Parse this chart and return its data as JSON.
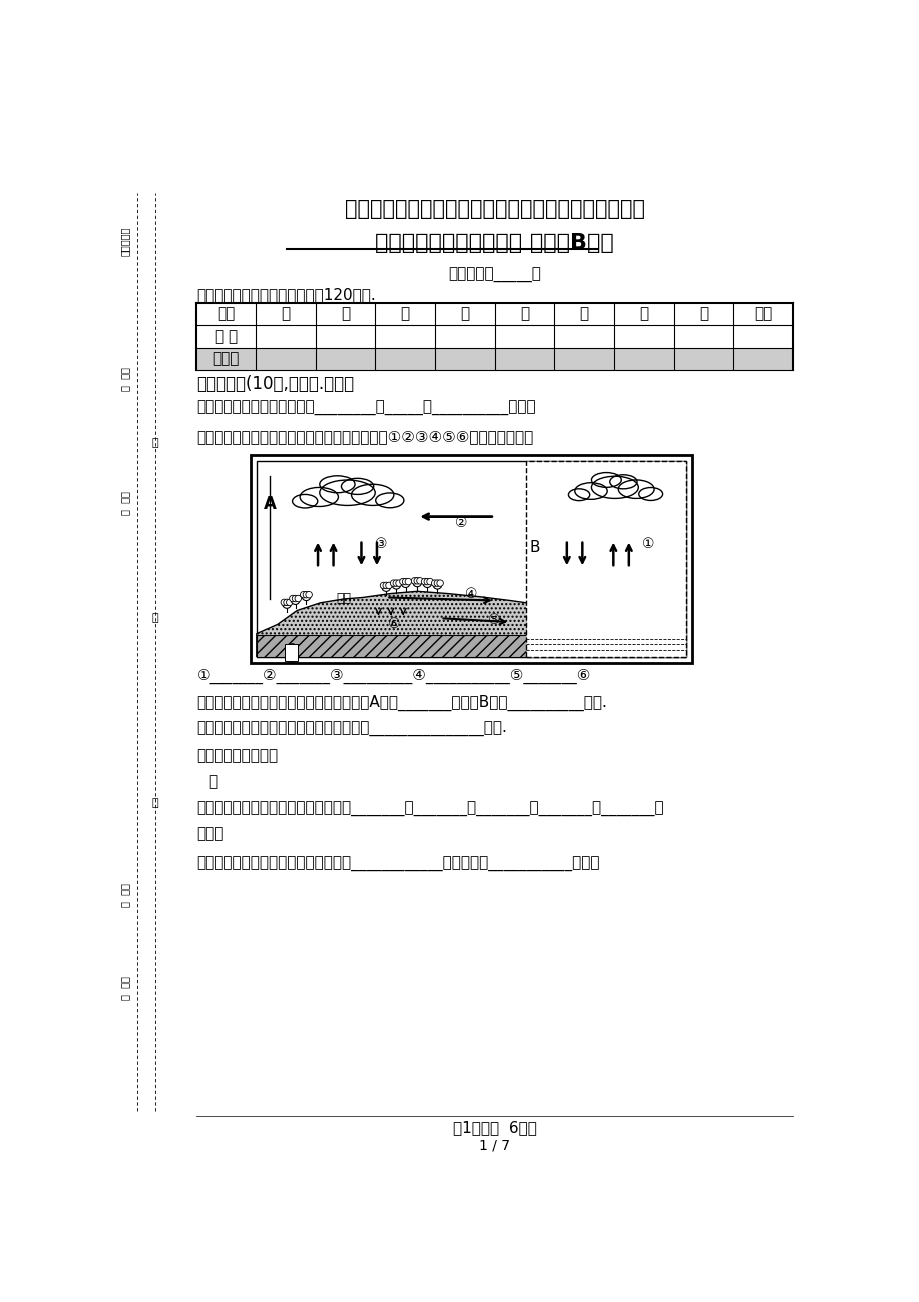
{
  "title1": "云南农业大学２０１５－２０１６学年一学期期末考试",
  "title2_part1": "《工程水文及水利计算》",
  "title2_part2": " 试卷（B卷）",
  "subtitle": "（课程代码_____）",
  "info": "本试题满分１００分，考试时间120分钟.",
  "table_headers": [
    "题号",
    "一",
    "二",
    "三",
    "四",
    "五",
    "六",
    "七",
    "八",
    "总分"
  ],
  "table_row1": "得 分",
  "table_row2": "阅卷人",
  "section1": "一、填空题(10分,每空０.５分）",
  "q1": "１、研究水文现象的方法包括________、_____、__________三类。",
  "q2": "２、下图为自然界水循环示意图，请分别出填写①②③④⑤⑥表示的是什么。",
  "answer_line": "①_______②_______③_________④___________⑤_______⑥",
  "q3": "３、按水文循环的规模和过程不同，上图中A表示_______循环、B表示__________循环.",
  "q4": "４、在水文频率分析计算中，我国一般选用_______________曲线.",
  "q5": "５、设计保证率是指",
  "q5b": "。",
  "q6": "６、河流沿水流方向，自上而下可分为_______、_______、_______、_______、_______、",
  "q6b": "五段。",
  "q7": "７、多年平均输沙量计算等于多年平均____________与多年平均___________之和。",
  "footer1": "第1页（共  6页）",
  "footer2": "1 / 7",
  "left_texts": [
    "教学班号：",
    "姓  名：",
    "学  号：",
    "专  业：",
    "学  院："
  ],
  "margin_chars": [
    "密",
    "封",
    "线"
  ]
}
